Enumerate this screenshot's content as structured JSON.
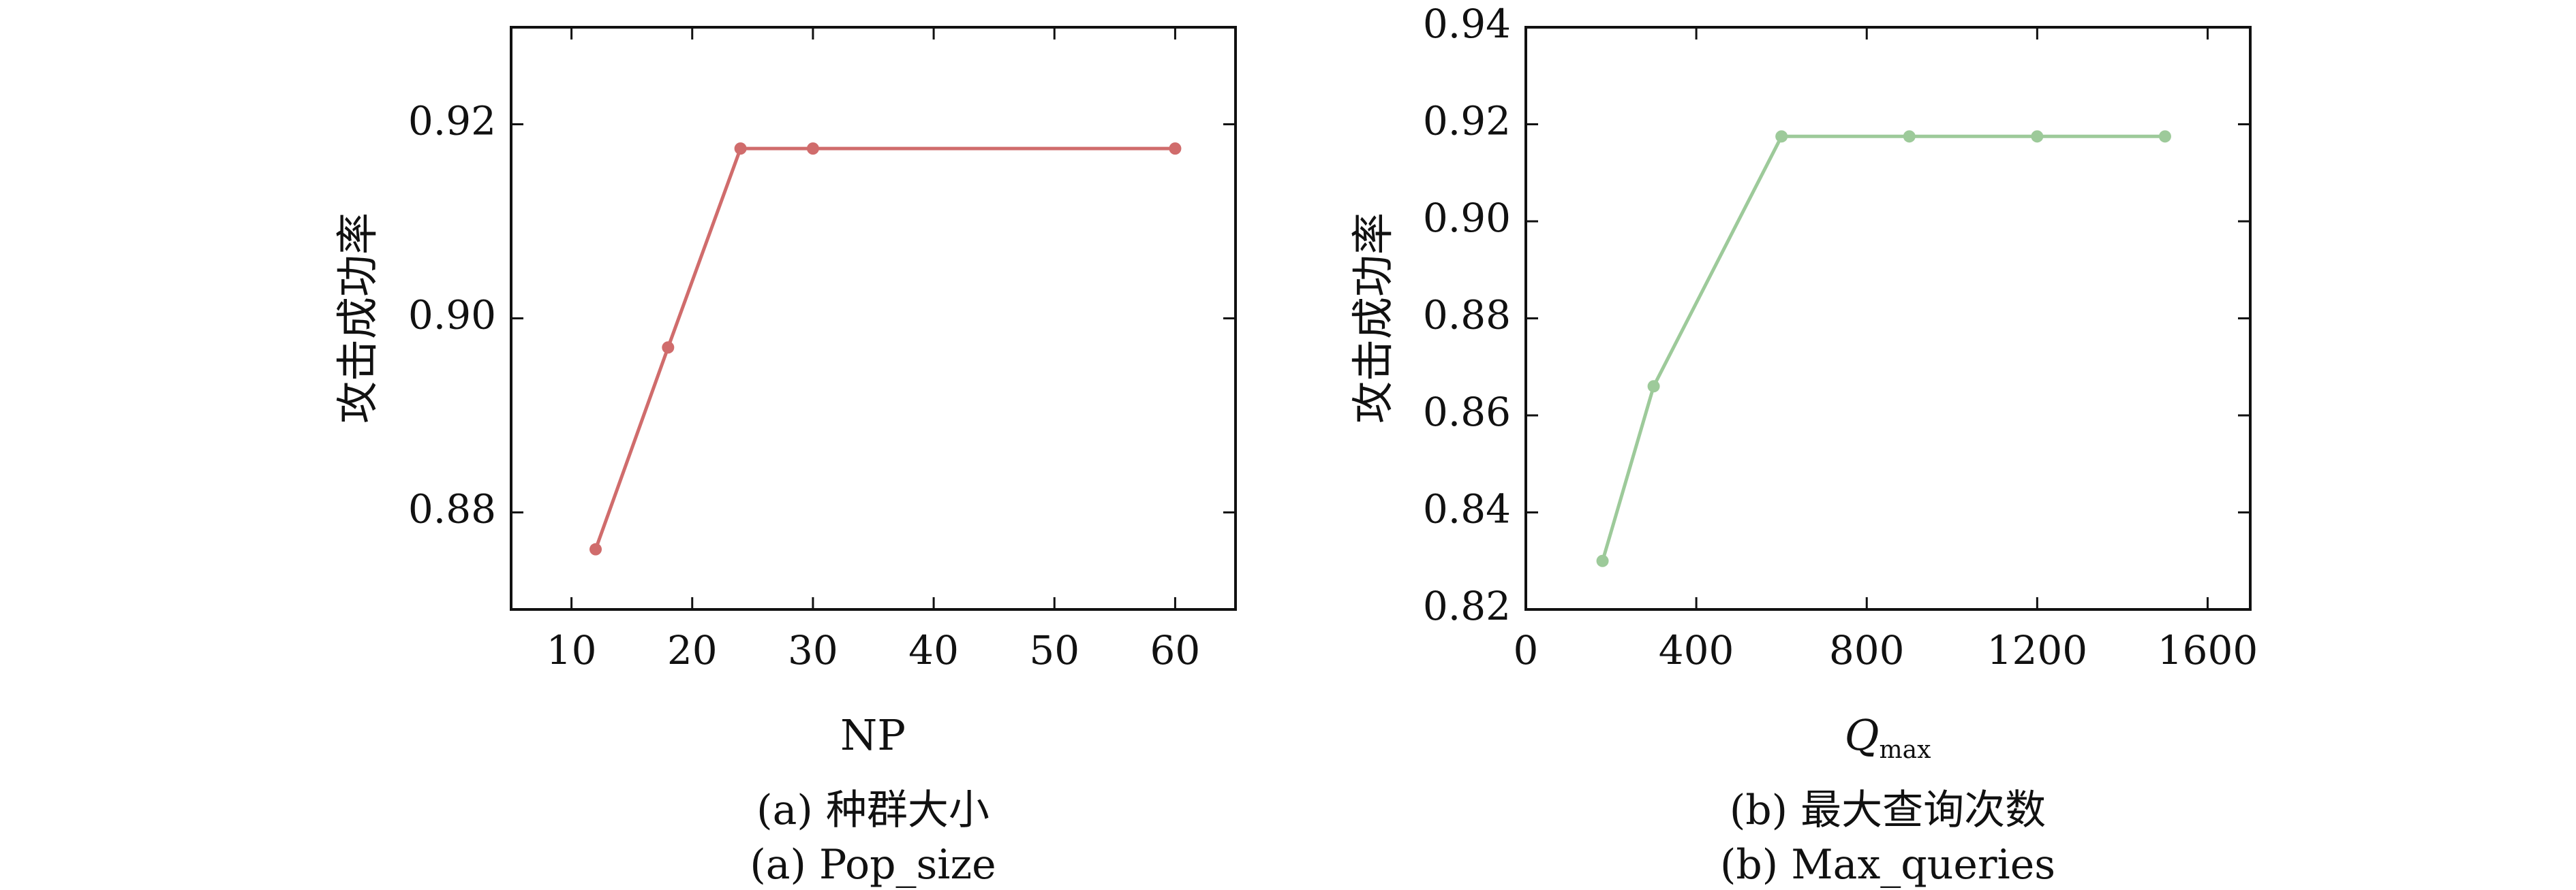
{
  "chart_data": [
    {
      "type": "line",
      "xlabel": "NP",
      "ylabel": "攻击成功率",
      "xlim": [
        5,
        65
      ],
      "ylim": [
        0.87,
        0.93
      ],
      "xticks": [
        "10",
        "20",
        "30",
        "40",
        "50",
        "60"
      ],
      "yticks": [
        "0.88",
        "0.90",
        "0.92"
      ],
      "x": [
        12,
        18,
        24,
        30,
        60
      ],
      "series": [
        {
          "values": [
            0.8762,
            0.897,
            0.9175,
            0.9175,
            0.9175
          ],
          "color": "#d06c6c"
        }
      ],
      "captions": [
        "(a) 种群大小",
        "(a) Pop_size"
      ],
      "grid": false,
      "legend": "none"
    },
    {
      "type": "line",
      "xlabel_main": "Q",
      "xlabel_sub": "max",
      "ylabel": "攻击成功率",
      "xlim": [
        0,
        1700
      ],
      "ylim": [
        0.82,
        0.94
      ],
      "xticks": [
        "0",
        "400",
        "800",
        "1200",
        "1600"
      ],
      "yticks": [
        "0.82",
        "0.84",
        "0.86",
        "0.88",
        "0.90",
        "0.92",
        "0.94"
      ],
      "x": [
        180,
        300,
        600,
        900,
        1200,
        1500
      ],
      "series": [
        {
          "values": [
            0.83,
            0.866,
            0.9175,
            0.9175,
            0.9175,
            0.9175
          ],
          "color": "#9dca9a"
        }
      ],
      "captions": [
        "(b) 最大查询次数",
        "(b) Max_queries"
      ],
      "grid": false,
      "legend": "none"
    }
  ]
}
